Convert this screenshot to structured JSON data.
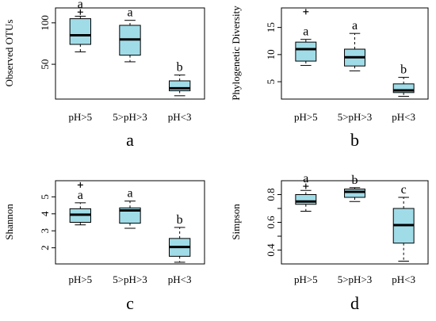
{
  "chart_data": [
    {
      "type": "box",
      "panel_label": "a",
      "ylabel": "Observed OTUs",
      "categories": [
        "pH>5",
        "5>pH>3",
        "pH<3"
      ],
      "yticks": [
        50,
        100
      ],
      "ylim": [
        8,
        118
      ],
      "box_color": "#a0dce8",
      "boxes": [
        {
          "whisker_low": 65,
          "q1": 74,
          "median": 85,
          "q3": 105,
          "whisker_high": 108,
          "outliers": [
            113
          ],
          "letter": "a"
        },
        {
          "whisker_low": 53,
          "q1": 61,
          "median": 80,
          "q3": 97,
          "whisker_high": 103,
          "outliers": [],
          "letter": "a"
        },
        {
          "whisker_low": 12,
          "q1": 18,
          "median": 21,
          "q3": 30,
          "whisker_high": 37,
          "outliers": [],
          "letter": "b"
        }
      ]
    },
    {
      "type": "box",
      "panel_label": "b",
      "ylabel": "Phylogenetic Diversity",
      "categories": [
        "pH>5",
        "5>pH>3",
        "pH<3"
      ],
      "yticks": [
        5,
        10,
        15
      ],
      "ylim": [
        1.8,
        18.6
      ],
      "box_color": "#a0dce8",
      "boxes": [
        {
          "whisker_low": 8,
          "q1": 8.8,
          "median": 11,
          "q3": 12.3,
          "whisker_high": 12.8,
          "outliers": [
            17.9
          ],
          "letter": "a"
        },
        {
          "whisker_low": 7,
          "q1": 7.9,
          "median": 9.5,
          "q3": 11,
          "whisker_high": 13.9,
          "outliers": [],
          "letter": "a"
        },
        {
          "whisker_low": 2.3,
          "q1": 3,
          "median": 3.4,
          "q3": 4.6,
          "whisker_high": 5.8,
          "outliers": [],
          "letter": "b"
        }
      ]
    },
    {
      "type": "box",
      "panel_label": "c",
      "ylabel": "Shannon",
      "categories": [
        "pH>5",
        "5>pH>3",
        "pH<3"
      ],
      "yticks": [
        2,
        3,
        4,
        5
      ],
      "ylim": [
        1.05,
        5.95
      ],
      "box_color": "#a0dce8",
      "boxes": [
        {
          "whisker_low": 3.35,
          "q1": 3.5,
          "median": 3.95,
          "q3": 4.3,
          "whisker_high": 4.65,
          "outliers": [
            5.7
          ],
          "letter": "a"
        },
        {
          "whisker_low": 3.15,
          "q1": 3.45,
          "median": 4.2,
          "q3": 4.35,
          "whisker_high": 4.75,
          "outliers": [],
          "letter": "a"
        },
        {
          "whisker_low": 1.15,
          "q1": 1.5,
          "median": 2.05,
          "q3": 2.55,
          "whisker_high": 3.2,
          "outliers": [],
          "letter": "b"
        }
      ]
    },
    {
      "type": "box",
      "panel_label": "d",
      "ylabel": "Simpson",
      "categories": [
        "pH>5",
        "5>pH>3",
        "pH<3"
      ],
      "yticks": [
        0.4,
        0.5,
        0.6,
        0.7,
        0.8
      ],
      "ytick_labels": [
        "0.4",
        "",
        "0.6",
        "",
        "0.8"
      ],
      "ylim": [
        0.3,
        0.9
      ],
      "box_color": "#a0dce8",
      "boxes": [
        {
          "whisker_low": 0.68,
          "q1": 0.73,
          "median": 0.75,
          "q3": 0.8,
          "whisker_high": 0.83,
          "outliers": [
            0.86
          ],
          "letter": "a"
        },
        {
          "whisker_low": 0.75,
          "q1": 0.78,
          "median": 0.82,
          "q3": 0.84,
          "whisker_high": 0.85,
          "outliers": [],
          "letter": "b"
        },
        {
          "whisker_low": 0.32,
          "q1": 0.45,
          "median": 0.58,
          "q3": 0.7,
          "whisker_high": 0.78,
          "outliers": [],
          "letter": "c"
        }
      ]
    }
  ]
}
